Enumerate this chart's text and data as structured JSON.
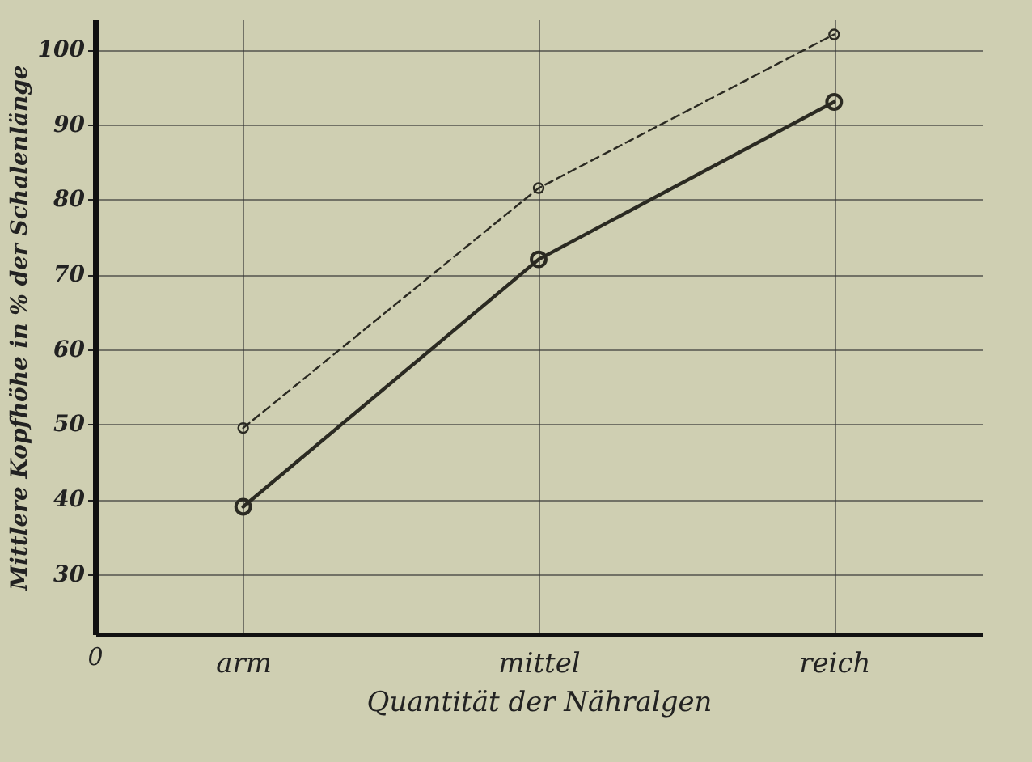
{
  "chart_data": {
    "type": "line",
    "xlabel": "Quantität der Nähralgen",
    "ylabel": "Mittlere Kopfhöhe in % der Schalenlänge",
    "categories": [
      "arm",
      "mittel",
      "reich"
    ],
    "ylim": [
      22,
      104
    ],
    "yticks": [
      30,
      40,
      50,
      60,
      70,
      80,
      90,
      100
    ],
    "grid": true,
    "annotations": [
      "0"
    ],
    "series": [
      {
        "color": "#2b2a22",
        "values": [
          39,
          72,
          93
        ],
        "marker": "circle",
        "line_style": "solid"
      },
      {
        "color": "#2b2a22",
        "values": [
          49.5,
          81.5,
          102
        ],
        "marker": "circle",
        "line_style": "dashed"
      }
    ]
  }
}
